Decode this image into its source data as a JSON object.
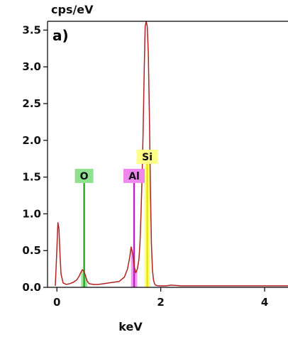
{
  "chart_data": {
    "type": "line",
    "panel_label": "a)",
    "ylabel": "cps/eV",
    "xlabel": "keV",
    "xlim": [
      -0.18,
      4.45
    ],
    "ylim": [
      0,
      3.62
    ],
    "x_ticks": [
      0,
      2,
      4
    ],
    "y_ticks": [
      0,
      0.5,
      1.0,
      1.5,
      2.0,
      2.5,
      3.0,
      3.5
    ],
    "y_tick_labels": [
      "0.0",
      "0.5",
      "1.0",
      "1.5",
      "2.0",
      "2.5",
      "3.0",
      "3.5"
    ],
    "grid": false,
    "series": [
      {
        "color": "#b22222",
        "x": [
          -0.03,
          0.0,
          0.02,
          0.04,
          0.06,
          0.08,
          0.12,
          0.18,
          0.25,
          0.32,
          0.38,
          0.42,
          0.46,
          0.49,
          0.52,
          0.55,
          0.58,
          0.62,
          0.7,
          0.8,
          0.9,
          1.0,
          1.1,
          1.2,
          1.3,
          1.36,
          1.4,
          1.43,
          1.46,
          1.49,
          1.52,
          1.55,
          1.58,
          1.6,
          1.62,
          1.64,
          1.66,
          1.68,
          1.7,
          1.72,
          1.74,
          1.76,
          1.78,
          1.8,
          1.82,
          1.84,
          1.86,
          1.88,
          1.9,
          1.95,
          2.0,
          2.1,
          2.2,
          2.4,
          2.6,
          2.8,
          3.0,
          3.2,
          3.4,
          3.6,
          3.8,
          4.0,
          4.2,
          4.45
        ],
        "y": [
          0.02,
          0.52,
          0.88,
          0.8,
          0.45,
          0.18,
          0.06,
          0.04,
          0.05,
          0.07,
          0.1,
          0.14,
          0.2,
          0.24,
          0.22,
          0.16,
          0.09,
          0.05,
          0.04,
          0.04,
          0.05,
          0.06,
          0.07,
          0.08,
          0.14,
          0.25,
          0.4,
          0.55,
          0.46,
          0.28,
          0.2,
          0.25,
          0.38,
          0.6,
          1.0,
          1.5,
          2.1,
          2.9,
          3.55,
          3.62,
          3.55,
          3.2,
          2.4,
          1.4,
          0.6,
          0.24,
          0.1,
          0.05,
          0.03,
          0.02,
          0.02,
          0.02,
          0.03,
          0.02,
          0.02,
          0.02,
          0.02,
          0.02,
          0.02,
          0.02,
          0.02,
          0.02,
          0.02,
          0.02
        ]
      }
    ],
    "element_markers": [
      {
        "label": "O",
        "x": 0.525,
        "height": 1.42,
        "color": "#22aa22",
        "box_color": "#8fe08f"
      },
      {
        "label": "Al",
        "x": 1.487,
        "height": 1.42,
        "color": "#c020c0",
        "box_color": "#ee88ee"
      },
      {
        "label": "Si",
        "x": 1.74,
        "height": 1.68,
        "color": "#e5e500",
        "box_color": "#ffff88"
      }
    ]
  }
}
